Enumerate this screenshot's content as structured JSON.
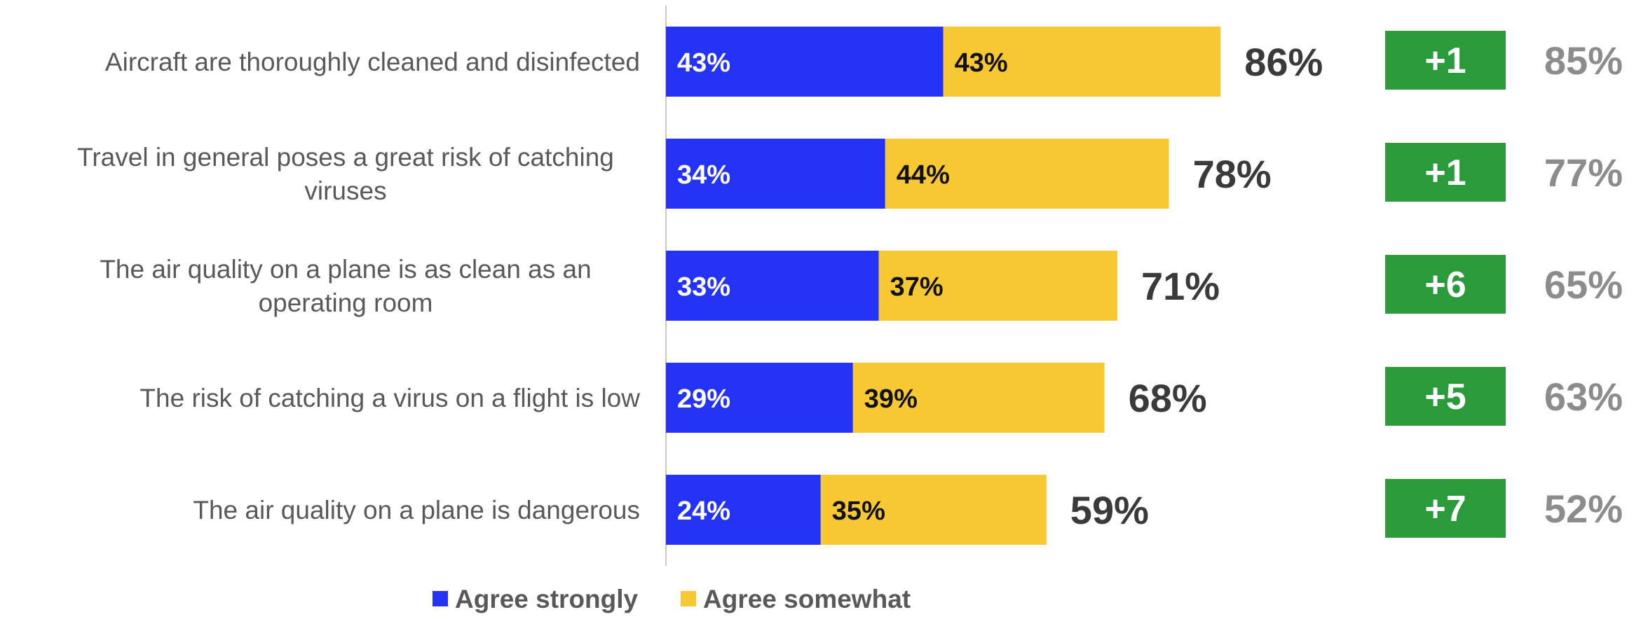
{
  "colors": {
    "agree_strongly": "#2433f5",
    "agree_somewhat": "#f8c832",
    "change_box": "#2a9a3a",
    "axis": "#c8c8c8"
  },
  "chart_data": {
    "type": "bar",
    "orientation": "horizontal",
    "stacked": true,
    "categories": [
      "Aircraft are thoroughly cleaned and disinfected",
      "Travel in general poses a great risk of catching viruses",
      "The air quality on a plane is as clean as an operating room",
      "The risk of catching a virus on a flight is low",
      "The air quality on a plane is dangerous"
    ],
    "series": [
      {
        "name": "Agree strongly",
        "values": [
          43,
          34,
          33,
          29,
          24
        ]
      },
      {
        "name": "Agree somewhat",
        "values": [
          43,
          44,
          37,
          39,
          35
        ]
      }
    ],
    "totals": [
      86,
      78,
      71,
      68,
      59
    ],
    "change": [
      "+1",
      "+1",
      "+6",
      "+5",
      "+7"
    ],
    "previous": [
      85,
      77,
      65,
      63,
      52
    ],
    "xlim": [
      0,
      100
    ],
    "legend": "bottom",
    "grid": false
  }
}
